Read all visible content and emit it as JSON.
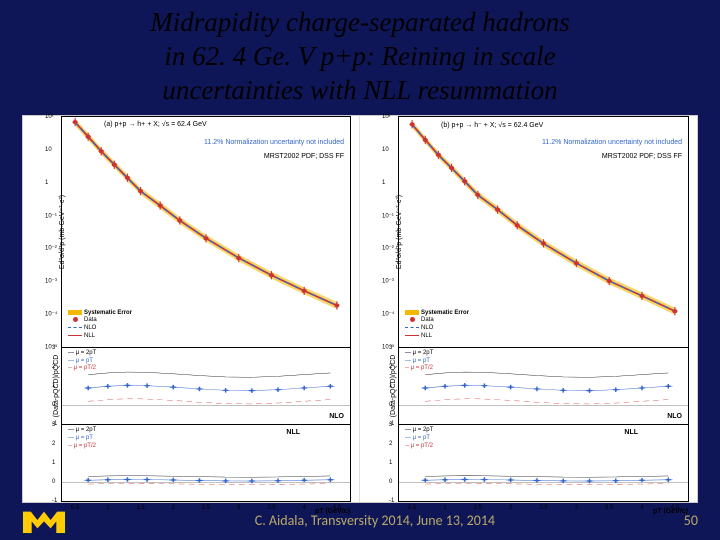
{
  "title_line1": "Midrapidity charge-separated hadrons",
  "title_line2": "in 62. 4 Ge. V p+p: Reining in scale",
  "title_line3": "uncertainties with NLL resummation",
  "footer_text": "C. Aidala, Transversity 2014, June 13, 2014",
  "page_number": "50",
  "panels": {
    "left": {
      "top": {
        "label_a": "(a) p+p → h+ + X; √s = 62.4 GeV",
        "norm_text": "11.2% Normalization uncertainty not included",
        "pdf_text": "MRST2002 PDF; DSS FF",
        "ylabel": "Ed³σ/d³p (mb·GeV⁻²·c³)",
        "ylog_ticks": [
          "10²",
          "10",
          "1",
          "10⁻¹",
          "10⁻²",
          "10⁻³",
          "10⁻⁴",
          "10⁻⁵"
        ],
        "legend": {
          "sys": "Systematic Error",
          "data": "Data",
          "nlo": "NLO",
          "nll": "NLL",
          "sys_color": "#f5b800",
          "data_color": "#cc3333",
          "nlo_color": "#3366cc",
          "nll_color": "#cc3333"
        },
        "data_color": "#cc3333",
        "band_color": "#f5b800",
        "nlo_color": "#3366cc",
        "nll_color": "#cc3333",
        "x": [
          0.5,
          0.7,
          0.9,
          1.1,
          1.3,
          1.5,
          1.8,
          2.1,
          2.5,
          3.0,
          3.5,
          4.0,
          4.5
        ],
        "y": [
          70,
          25,
          9,
          3.5,
          1.4,
          0.55,
          0.2,
          0.07,
          0.02,
          0.005,
          0.0015,
          0.0005,
          0.00018
        ]
      },
      "mid": {
        "ylabel": "(Data-pQCD)/pQCD",
        "legend_mu": [
          "μ = 2pT",
          "μ = pT",
          "μ = pT/2"
        ],
        "label": "NLO",
        "yticks": [
          "3",
          "2",
          "1",
          "0",
          "-1"
        ],
        "line_color": "#3366cc",
        "dash_color": "#cc3333"
      },
      "bot": {
        "legend_mu": [
          "μ = 2pT",
          "μ = pT",
          "μ = pT/2"
        ],
        "label": "NLL",
        "yticks": [
          "3",
          "2",
          "1",
          "0",
          "-1"
        ],
        "line_color": "#3366cc",
        "dash_color": "#cc3333"
      }
    },
    "right": {
      "top": {
        "label_b": "(b) p+p → h⁻ + X; √s = 62.4 GeV",
        "norm_text": "11.2% Normalization uncertainty not included",
        "pdf_text": "MRST2002 PDF; DSS FF",
        "ylabel": "Ed³σ/d³p (mb·GeV⁻²·c³)",
        "ylog_ticks": [
          "10²",
          "10",
          "1",
          "10⁻¹",
          "10⁻²",
          "10⁻³",
          "10⁻⁴",
          "10⁻⁵"
        ],
        "legend": {
          "sys": "Systematic Error",
          "data": "Data",
          "nlo": "NLO",
          "nll": "NLL",
          "sys_color": "#f5b800",
          "data_color": "#cc3333",
          "nlo_color": "#3366cc",
          "nll_color": "#cc3333"
        },
        "data_color": "#cc3333",
        "band_color": "#f5b800",
        "nlo_color": "#3366cc",
        "nll_color": "#cc3333",
        "x": [
          0.5,
          0.7,
          0.9,
          1.1,
          1.3,
          1.5,
          1.8,
          2.1,
          2.5,
          3.0,
          3.5,
          4.0,
          4.5
        ],
        "y": [
          60,
          20,
          7,
          2.8,
          1.1,
          0.42,
          0.15,
          0.05,
          0.014,
          0.0035,
          0.001,
          0.00035,
          0.00012
        ]
      },
      "mid": {
        "ylabel": "(Data-pQCD)/pQCD",
        "legend_mu": [
          "μ = 2pT",
          "μ = pT",
          "μ = pT/2"
        ],
        "label": "NLO",
        "yticks": [
          "3",
          "2",
          "1",
          "0",
          "-1"
        ],
        "line_color": "#3366cc",
        "dash_color": "#cc3333"
      },
      "bot": {
        "legend_mu": [
          "μ = 2pT",
          "μ = pT",
          "μ = pT/2"
        ],
        "label": "NLL",
        "yticks": [
          "3",
          "2",
          "1",
          "0",
          "-1"
        ],
        "line_color": "#3366cc",
        "dash_color": "#cc3333"
      }
    },
    "xticks": [
      "0.5",
      "1",
      "1.5",
      "2",
      "2.5",
      "3",
      "3.5",
      "4",
      "4.5"
    ],
    "xlabel": "pT (GeV/c)",
    "xlim": [
      0.3,
      4.7
    ],
    "ylim_log": [
      1e-05,
      100.0
    ],
    "ylim_ratio": [
      -1,
      3
    ]
  },
  "colors": {
    "bg": "#0f1657",
    "footer": "#b8a968"
  }
}
